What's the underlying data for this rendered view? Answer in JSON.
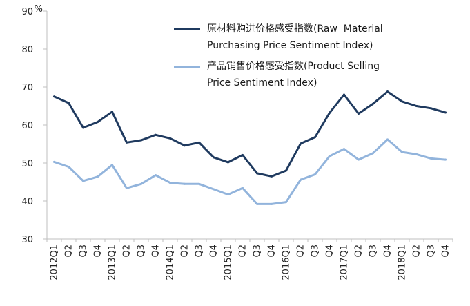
{
  "chart_data": {
    "type": "line",
    "unit_label": "%",
    "ylim": [
      30,
      90
    ],
    "yticks": [
      30,
      40,
      50,
      60,
      70,
      80,
      90
    ],
    "categories": [
      "2012Q1",
      "Q2",
      "Q3",
      "Q4",
      "2013Q1",
      "Q2",
      "Q3",
      "Q4",
      "2014Q1",
      "Q2",
      "Q3",
      "Q4",
      "2015Q1",
      "Q2",
      "Q3",
      "Q4",
      "2016Q1",
      "Q2",
      "Q3",
      "Q4",
      "2017Q1",
      "Q2",
      "Q3",
      "Q4",
      "2018Q1",
      "Q2",
      "Q3",
      "Q4"
    ],
    "grid": false,
    "legend_position": "top-right",
    "series": [
      {
        "name": "原材料购进价格感受指数(Raw  Material\nPurchasing Price Sentiment Index)",
        "color": "#1f3a5f",
        "values": [
          67.5,
          65.8,
          59.3,
          60.8,
          63.5,
          55.4,
          56.0,
          57.4,
          56.5,
          54.6,
          55.4,
          51.5,
          50.2,
          52.1,
          47.3,
          46.5,
          48.0,
          55.1,
          56.8,
          63.2,
          68.0,
          63.0,
          65.6,
          68.8,
          66.2,
          65.0,
          64.4,
          63.3
        ]
      },
      {
        "name": "产品销售价格感受指数(Product Selling\nPrice Sentiment Index)",
        "color": "#92b4dc",
        "values": [
          50.3,
          49.0,
          45.3,
          46.4,
          49.5,
          43.4,
          44.5,
          46.8,
          44.8,
          44.5,
          44.5,
          43.1,
          41.7,
          43.4,
          39.2,
          39.2,
          39.7,
          45.6,
          47.0,
          51.8,
          53.7,
          50.9,
          52.6,
          56.2,
          52.9,
          52.3,
          51.2,
          50.9
        ]
      }
    ]
  }
}
